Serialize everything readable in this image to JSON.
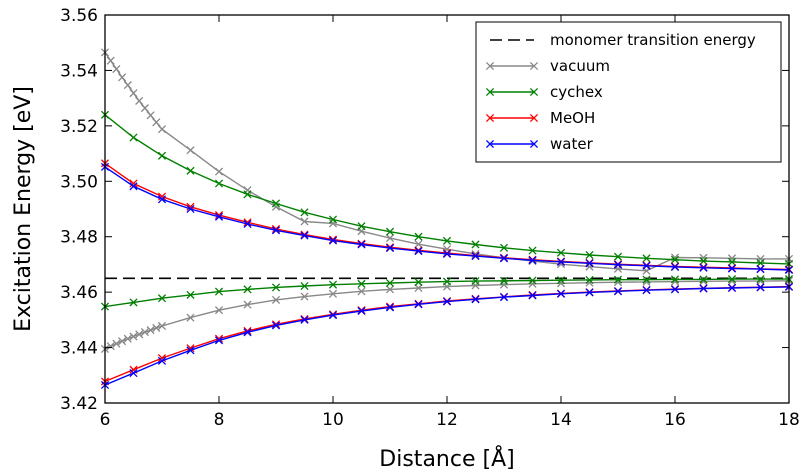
{
  "chart_data": {
    "type": "line",
    "xlabel": "Distance [Å]",
    "ylabel": "Excitation Energy [eV]",
    "xlim": [
      6,
      18
    ],
    "ylim": [
      3.42,
      3.56
    ],
    "xticks": [
      "6",
      "8",
      "10",
      "12",
      "14",
      "16",
      "18"
    ],
    "yticks": [
      "3.42",
      "3.44",
      "3.46",
      "3.48",
      "3.50",
      "3.52",
      "3.54",
      "3.56"
    ],
    "grid": false,
    "legend_position": "top-right",
    "reference_line": {
      "name": "monomer transition energy",
      "y": 3.465,
      "style": "dashed",
      "color": "#000000"
    },
    "series": [
      {
        "name": "vacuum",
        "color": "#888888",
        "branches": [
          {
            "x": [
              6.0,
              6.1,
              6.2,
              6.3,
              6.4,
              6.5,
              6.6,
              6.7,
              6.8,
              6.9,
              7.0,
              7.5,
              8.0,
              8.5,
              9.0,
              9.5,
              10.0,
              10.5,
              11.0,
              11.5,
              12.0,
              12.5,
              13.0,
              13.5,
              14.0,
              14.5,
              15.0,
              15.5,
              16.0,
              16.5,
              17.0,
              17.5,
              18.0
            ],
            "y": [
              3.5465,
              3.5435,
              3.5405,
              3.5375,
              3.5347,
              3.5318,
              3.529,
              3.5264,
              3.5238,
              3.5213,
              3.5188,
              3.5112,
              3.5035,
              3.4968,
              3.4908,
              3.4855,
              3.4848,
              3.482,
              3.4795,
              3.4773,
              3.4755,
              3.4738,
              3.4724,
              3.4712,
              3.4701,
              3.4692,
              3.4684,
              3.4677,
              3.4725,
              3.4724,
              3.4722,
              3.472,
              3.472
            ]
          },
          {
            "x": [
              6.0,
              6.1,
              6.2,
              6.3,
              6.4,
              6.5,
              6.6,
              6.7,
              6.8,
              6.9,
              7.0,
              7.5,
              8.0,
              8.5,
              9.0,
              9.5,
              10.0,
              10.5,
              11.0,
              11.5,
              12.0,
              12.5,
              13.0,
              13.5,
              14.0,
              14.5,
              15.0,
              15.5,
              16.0,
              16.5,
              17.0,
              17.5,
              18.0
            ],
            "y": [
              3.4395,
              3.4405,
              3.4414,
              3.4423,
              3.4432,
              3.444,
              3.4448,
              3.4456,
              3.4463,
              3.4471,
              3.4478,
              3.4508,
              3.4535,
              3.4555,
              3.4572,
              3.4584,
              3.4594,
              3.4603,
              3.461,
              3.4615,
              3.462,
              3.4624,
              3.4627,
              3.463,
              3.4632,
              3.4634,
              3.4636,
              3.4637,
              3.4638,
              3.4639,
              3.464,
              3.464,
              3.4641
            ]
          }
        ]
      },
      {
        "name": "cychex",
        "color": "#008000",
        "branches": [
          {
            "x": [
              6.0,
              6.5,
              7.0,
              7.5,
              8.0,
              8.5,
              9.0,
              9.5,
              10.0,
              10.5,
              11.0,
              11.5,
              12.0,
              12.5,
              13.0,
              13.5,
              14.0,
              14.5,
              15.0,
              15.5,
              16.0,
              16.5,
              17.0,
              17.5,
              18.0
            ],
            "y": [
              3.524,
              3.5158,
              3.5092,
              3.5038,
              3.4992,
              3.4953,
              3.492,
              3.4888,
              3.4862,
              3.4838,
              3.4818,
              3.48,
              3.4785,
              3.4772,
              3.476,
              3.475,
              3.4742,
              3.4734,
              3.4728,
              3.4722,
              3.4717,
              3.4712,
              3.4709,
              3.4705,
              3.4702
            ]
          },
          {
            "x": [
              6.0,
              6.5,
              7.0,
              7.5,
              8.0,
              8.5,
              9.0,
              9.5,
              10.0,
              10.5,
              11.0,
              11.5,
              12.0,
              12.5,
              13.0,
              13.5,
              14.0,
              14.5,
              15.0,
              15.5,
              16.0,
              16.5,
              17.0,
              17.5,
              18.0
            ],
            "y": [
              3.4548,
              3.4563,
              3.4578,
              3.459,
              3.4602,
              3.461,
              3.4617,
              3.4622,
              3.4627,
              3.463,
              3.4633,
              3.4636,
              3.4638,
              3.464,
              3.4641,
              3.4642,
              3.4643,
              3.4644,
              3.4645,
              3.4645,
              3.4646,
              3.4646,
              3.4647,
              3.4647,
              3.4647
            ]
          }
        ]
      },
      {
        "name": "MeOH",
        "color": "#ff0000",
        "branches": [
          {
            "x": [
              6.0,
              6.5,
              7.0,
              7.5,
              8.0,
              8.5,
              9.0,
              9.5,
              10.0,
              10.5,
              11.0,
              11.5,
              12.0,
              12.5,
              13.0,
              13.5,
              14.0,
              14.5,
              15.0,
              15.5,
              16.0,
              16.5,
              17.0,
              17.5,
              18.0
            ],
            "y": [
              3.5065,
              3.4992,
              3.4945,
              3.4908,
              3.4878,
              3.4852,
              3.4828,
              3.4808,
              3.479,
              3.4775,
              3.4762,
              3.4751,
              3.4741,
              3.4732,
              3.4724,
              3.4717,
              3.4711,
              3.4706,
              3.4701,
              3.4697,
              3.4693,
              3.469,
              3.4687,
              3.4684,
              3.4682
            ]
          },
          {
            "x": [
              6.0,
              6.5,
              7.0,
              7.5,
              8.0,
              8.5,
              9.0,
              9.5,
              10.0,
              10.5,
              11.0,
              11.5,
              12.0,
              12.5,
              13.0,
              13.5,
              14.0,
              14.5,
              15.0,
              15.5,
              16.0,
              16.5,
              17.0,
              17.5,
              18.0
            ],
            "y": [
              3.4278,
              3.432,
              3.4362,
              3.4398,
              3.4432,
              3.446,
              3.4484,
              3.4503,
              3.452,
              3.4535,
              3.4548,
              3.4558,
              3.4568,
              3.4576,
              3.4583,
              3.459,
              3.4595,
              3.46,
              3.4604,
              3.4608,
              3.4611,
              3.4614,
              3.4616,
              3.4618,
              3.462
            ]
          }
        ]
      },
      {
        "name": "water",
        "color": "#0000ff",
        "branches": [
          {
            "x": [
              6.0,
              6.5,
              7.0,
              7.5,
              8.0,
              8.5,
              9.0,
              9.5,
              10.0,
              10.5,
              11.0,
              11.5,
              12.0,
              12.5,
              13.0,
              13.5,
              14.0,
              14.5,
              15.0,
              15.5,
              16.0,
              16.5,
              17.0,
              17.5,
              18.0
            ],
            "y": [
              3.5052,
              3.4982,
              3.4935,
              3.49,
              3.4872,
              3.4846,
              3.4823,
              3.4804,
              3.4786,
              3.4772,
              3.4759,
              3.4748,
              3.4738,
              3.473,
              3.4722,
              3.4715,
              3.4709,
              3.4704,
              3.4699,
              3.4695,
              3.4691,
              3.4688,
              3.4685,
              3.4683,
              3.468
            ]
          },
          {
            "x": [
              6.0,
              6.5,
              7.0,
              7.5,
              8.0,
              8.5,
              9.0,
              9.5,
              10.0,
              10.5,
              11.0,
              11.5,
              12.0,
              12.5,
              13.0,
              13.5,
              14.0,
              14.5,
              15.0,
              15.5,
              16.0,
              16.5,
              17.0,
              17.5,
              18.0
            ],
            "y": [
              3.4265,
              3.4308,
              3.4352,
              3.439,
              3.4426,
              3.4455,
              3.448,
              3.45,
              3.4517,
              3.4532,
              3.4545,
              3.4556,
              3.4566,
              3.4574,
              3.4582,
              3.4588,
              3.4594,
              3.4599,
              3.4603,
              3.4607,
              3.461,
              3.4613,
              3.4615,
              3.4617,
              3.4619
            ]
          }
        ]
      }
    ]
  }
}
